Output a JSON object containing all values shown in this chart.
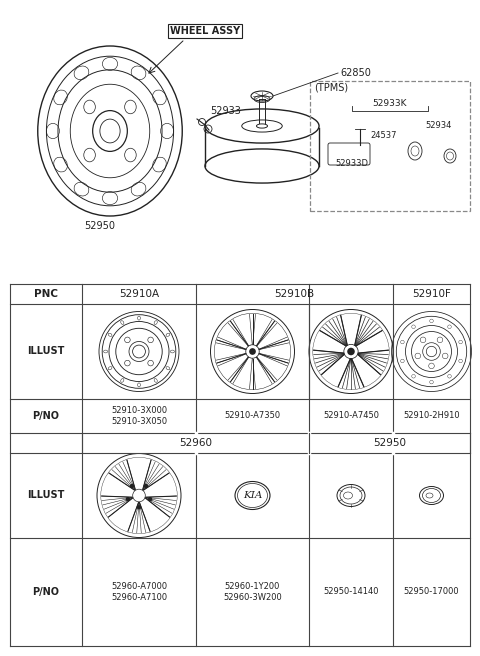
{
  "bg_color": "#ffffff",
  "top_diagram": {
    "wheel_assy_label": "WHEEL ASSY",
    "part_62850": "62850",
    "part_52933": "52933",
    "part_52950_top": "52950",
    "tpms_box_label": "(TPMS)",
    "part_52933K": "52933K",
    "part_52933D": "52933D",
    "part_52934": "52934",
    "part_24537": "24537"
  },
  "table": {
    "row2_pnos": [
      "52910-3X000\n52910-3X050",
      "52910-A7350",
      "52910-A7450",
      "52910-2H910"
    ],
    "row5_pnos": [
      "52960-A7000\n52960-A7100",
      "52960-1Y200\n52960-3W200",
      "52950-14140",
      "52950-17000"
    ]
  },
  "line_color": "#222222",
  "text_color": "#222222",
  "table_border": "#444444"
}
